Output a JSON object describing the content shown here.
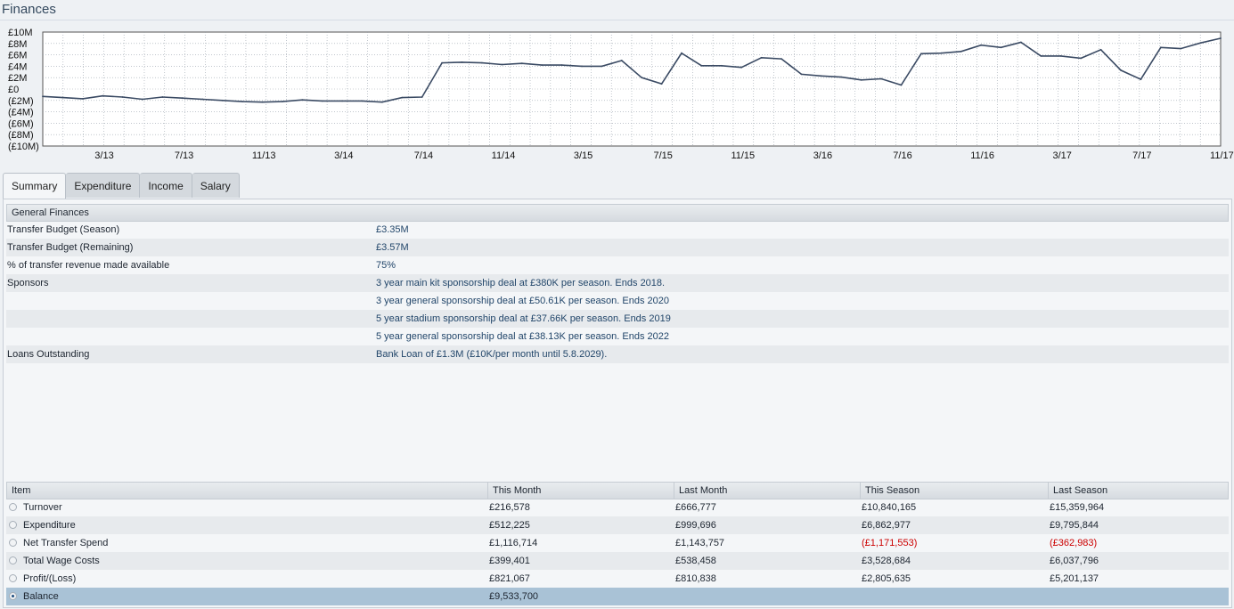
{
  "page": {
    "title": "Finances"
  },
  "chart_data": {
    "type": "line",
    "title": "",
    "ylim": [
      -10,
      10
    ],
    "yticks": [
      "£10M",
      "£8M",
      "£6M",
      "£4M",
      "£2M",
      "£0",
      "(£2M)",
      "(£4M)",
      "(£6M)",
      "(£8M)",
      "(£10M)"
    ],
    "xticks": [
      "3/13",
      "7/13",
      "11/13",
      "3/14",
      "7/14",
      "11/14",
      "3/15",
      "7/15",
      "11/15",
      "3/16",
      "7/16",
      "11/16",
      "3/17",
      "7/17",
      "11/17"
    ],
    "grid": true,
    "series": [
      {
        "values": [
          -1.3,
          -1.5,
          -1.7,
          -1.2,
          -1.4,
          -1.8,
          -1.4,
          -1.6,
          -1.8,
          -2.0,
          -2.2,
          -2.3,
          -2.2,
          -1.9,
          -2.1,
          -2.1,
          -2.1,
          -2.3,
          -1.5,
          -1.4,
          4.6,
          4.7,
          4.6,
          4.3,
          4.5,
          4.2,
          4.2,
          4.0,
          4.0,
          5.0,
          2.0,
          0.9,
          6.3,
          4.1,
          4.1,
          3.8,
          5.5,
          5.3,
          2.6,
          2.3,
          2.1,
          1.6,
          1.8,
          0.7,
          6.2,
          6.3,
          6.6,
          7.7,
          7.3,
          8.2,
          5.8,
          5.8,
          5.4,
          6.9,
          3.3,
          1.7,
          7.3,
          7.1,
          8.1,
          8.9
        ]
      }
    ]
  },
  "tabs": [
    {
      "label": "Summary",
      "active": true
    },
    {
      "label": "Expenditure",
      "active": false
    },
    {
      "label": "Income",
      "active": false
    },
    {
      "label": "Salary",
      "active": false
    }
  ],
  "general": {
    "header": "General Finances",
    "rows": [
      {
        "label": "Transfer Budget (Season)",
        "value": "£3.35M"
      },
      {
        "label": "Transfer Budget (Remaining)",
        "value": "£3.57M"
      },
      {
        "label": "% of transfer revenue made available",
        "value": "75%"
      },
      {
        "label": "Sponsors",
        "value": "3 year main kit sponsorship deal at £380K per season. Ends 2018."
      },
      {
        "label": "",
        "value": "3 year general sponsorship deal at £50.61K per season. Ends 2020"
      },
      {
        "label": "",
        "value": "5 year stadium sponsorship deal at £37.66K per season. Ends 2019"
      },
      {
        "label": "",
        "value": "5 year general sponsorship deal at £38.13K per season. Ends 2022"
      },
      {
        "label": "Loans Outstanding",
        "value": "Bank Loan of £1.3M (£10K/per month until 5.8.2029)."
      }
    ]
  },
  "summary_table": {
    "headers": [
      "Item",
      "This Month",
      "Last Month",
      "This Season",
      "Last Season"
    ],
    "rows": [
      {
        "item": "Turnover",
        "this_month": "£216,578",
        "last_month": "£666,777",
        "this_season": "£10,840,165",
        "last_season": "£15,359,964",
        "selected": false
      },
      {
        "item": "Expenditure",
        "this_month": "£512,225",
        "last_month": "£999,696",
        "this_season": "£6,862,977",
        "last_season": "£9,795,844",
        "selected": false
      },
      {
        "item": "Net Transfer Spend",
        "this_month": "£1,116,714",
        "last_month": "£1,143,757",
        "this_season": "(£1,171,553)",
        "last_season": "(£362,983)",
        "selected": false
      },
      {
        "item": "Total Wage Costs",
        "this_month": "£399,401",
        "last_month": "£538,458",
        "this_season": "£3,528,684",
        "last_season": "£6,037,796",
        "selected": false
      },
      {
        "item": "Profit/(Loss)",
        "this_month": "£821,067",
        "last_month": "£810,838",
        "this_season": "£2,805,635",
        "last_season": "£5,201,137",
        "selected": false
      },
      {
        "item": "Balance",
        "this_month": "£9,533,700",
        "last_month": "",
        "this_season": "",
        "last_season": "",
        "selected": true
      }
    ]
  },
  "colors": {
    "line": "#3a4a63",
    "negative": "#cc0000",
    "selected_row": "#a9c2d6"
  }
}
